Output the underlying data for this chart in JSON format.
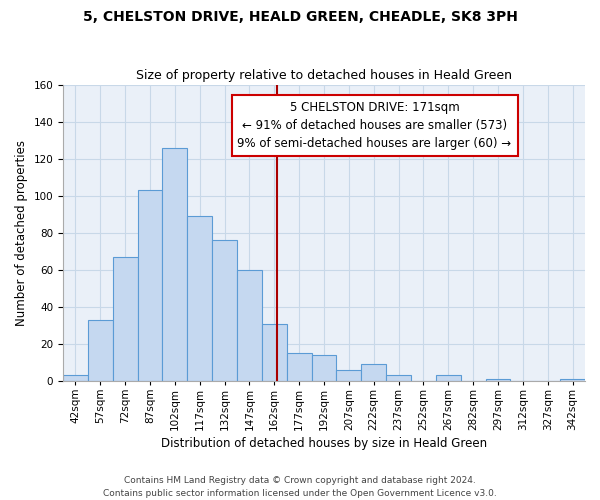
{
  "title": "5, CHELSTON DRIVE, HEALD GREEN, CHEADLE, SK8 3PH",
  "subtitle": "Size of property relative to detached houses in Heald Green",
  "xlabel": "Distribution of detached houses by size in Heald Green",
  "ylabel": "Number of detached properties",
  "footer_line1": "Contains HM Land Registry data © Crown copyright and database right 2024.",
  "footer_line2": "Contains public sector information licensed under the Open Government Licence v3.0.",
  "annotation_line1": "5 CHELSTON DRIVE: 171sqm",
  "annotation_line2": "← 91% of detached houses are smaller (573)",
  "annotation_line3": "9% of semi-detached houses are larger (60) →",
  "bar_edges": [
    42,
    57,
    72,
    87,
    102,
    117,
    132,
    147,
    162,
    177,
    192,
    207,
    222,
    237,
    252,
    267,
    282,
    297,
    312,
    327,
    342
  ],
  "bar_heights": [
    3,
    33,
    67,
    103,
    126,
    89,
    76,
    60,
    31,
    15,
    14,
    6,
    9,
    3,
    0,
    3,
    0,
    1,
    0,
    0,
    1
  ],
  "bar_color": "#c5d8f0",
  "bar_edge_color": "#5b9bd5",
  "vline_x": 171,
  "vline_color": "#aa0000",
  "ylim": [
    0,
    160
  ],
  "bin_width": 15,
  "yticks": [
    0,
    20,
    40,
    60,
    80,
    100,
    120,
    140,
    160
  ],
  "bin_labels": [
    "42sqm",
    "57sqm",
    "72sqm",
    "87sqm",
    "102sqm",
    "117sqm",
    "132sqm",
    "147sqm",
    "162sqm",
    "177sqm",
    "192sqm",
    "207sqm",
    "222sqm",
    "237sqm",
    "252sqm",
    "267sqm",
    "282sqm",
    "297sqm",
    "312sqm",
    "327sqm",
    "342sqm"
  ],
  "grid_color": "#c8d8e8",
  "background_color": "#ffffff",
  "plot_bg_color": "#eaf0f8",
  "annotation_box_edge_color": "#cc0000",
  "annotation_box_face_color": "#ffffff",
  "title_fontsize": 10,
  "subtitle_fontsize": 9,
  "axis_label_fontsize": 8.5,
  "tick_fontsize": 7.5,
  "annotation_fontsize": 8.5,
  "footer_fontsize": 6.5
}
